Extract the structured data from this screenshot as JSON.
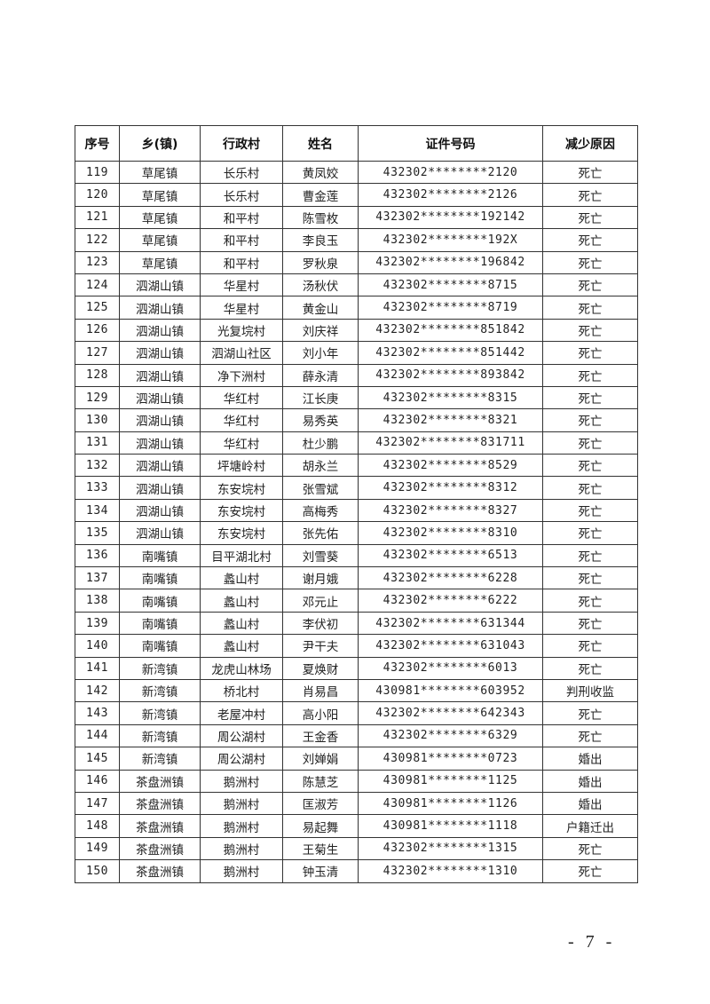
{
  "table": {
    "headers": [
      "序号",
      "乡(镇)",
      "行政村",
      "姓名",
      "证件号码",
      "减少原因"
    ],
    "rows": [
      [
        "119",
        "草尾镇",
        "长乐村",
        "黄凤姣",
        "432302********2120",
        "死亡"
      ],
      [
        "120",
        "草尾镇",
        "长乐村",
        "曹金莲",
        "432302********2126",
        "死亡"
      ],
      [
        "121",
        "草尾镇",
        "和平村",
        "陈雪枚",
        "432302********192142",
        "死亡"
      ],
      [
        "122",
        "草尾镇",
        "和平村",
        "李良玉",
        "432302********192X",
        "死亡"
      ],
      [
        "123",
        "草尾镇",
        "和平村",
        "罗秋泉",
        "432302********196842",
        "死亡"
      ],
      [
        "124",
        "泗湖山镇",
        "华星村",
        "汤秋伏",
        "432302********8715",
        "死亡"
      ],
      [
        "125",
        "泗湖山镇",
        "华星村",
        "黄金山",
        "432302********8719",
        "死亡"
      ],
      [
        "126",
        "泗湖山镇",
        "光复垸村",
        "刘庆祥",
        "432302********851842",
        "死亡"
      ],
      [
        "127",
        "泗湖山镇",
        "泗湖山社区",
        "刘小年",
        "432302********851442",
        "死亡"
      ],
      [
        "128",
        "泗湖山镇",
        "净下洲村",
        "薛永清",
        "432302********893842",
        "死亡"
      ],
      [
        "129",
        "泗湖山镇",
        "华红村",
        "江长庚",
        "432302********8315",
        "死亡"
      ],
      [
        "130",
        "泗湖山镇",
        "华红村",
        "易秀英",
        "432302********8321",
        "死亡"
      ],
      [
        "131",
        "泗湖山镇",
        "华红村",
        "杜少鹏",
        "432302********831711",
        "死亡"
      ],
      [
        "132",
        "泗湖山镇",
        "坪塘岭村",
        "胡永兰",
        "432302********8529",
        "死亡"
      ],
      [
        "133",
        "泗湖山镇",
        "东安垸村",
        "张雪斌",
        "432302********8312",
        "死亡"
      ],
      [
        "134",
        "泗湖山镇",
        "东安垸村",
        "高梅秀",
        "432302********8327",
        "死亡"
      ],
      [
        "135",
        "泗湖山镇",
        "东安垸村",
        "张先佑",
        "432302********8310",
        "死亡"
      ],
      [
        "136",
        "南嘴镇",
        "目平湖北村",
        "刘雪葵",
        "432302********6513",
        "死亡"
      ],
      [
        "137",
        "南嘴镇",
        "蠡山村",
        "谢月娥",
        "432302********6228",
        "死亡"
      ],
      [
        "138",
        "南嘴镇",
        "蠡山村",
        "邓元止",
        "432302********6222",
        "死亡"
      ],
      [
        "139",
        "南嘴镇",
        "蠡山村",
        "李伏初",
        "432302********631344",
        "死亡"
      ],
      [
        "140",
        "南嘴镇",
        "蠡山村",
        "尹干夫",
        "432302********631043",
        "死亡"
      ],
      [
        "141",
        "新湾镇",
        "龙虎山林场",
        "夏焕财",
        "432302********6013",
        "死亡"
      ],
      [
        "142",
        "新湾镇",
        "桥北村",
        "肖易昌",
        "430981********603952",
        "判刑收监"
      ],
      [
        "143",
        "新湾镇",
        "老屋冲村",
        "高小阳",
        "432302********642343",
        "死亡"
      ],
      [
        "144",
        "新湾镇",
        "周公湖村",
        "王金香",
        "432302********6329",
        "死亡"
      ],
      [
        "145",
        "新湾镇",
        "周公湖村",
        "刘婵娟",
        "430981********0723",
        "婚出"
      ],
      [
        "146",
        "茶盘洲镇",
        "鹅洲村",
        "陈慧芝",
        "430981********1125",
        "婚出"
      ],
      [
        "147",
        "茶盘洲镇",
        "鹅洲村",
        "匡淑芳",
        "430981********1126",
        "婚出"
      ],
      [
        "148",
        "茶盘洲镇",
        "鹅洲村",
        "易起舞",
        "430981********1118",
        "户籍迁出"
      ],
      [
        "149",
        "茶盘洲镇",
        "鹅洲村",
        "王菊生",
        "432302********1315",
        "死亡"
      ],
      [
        "150",
        "茶盘洲镇",
        "鹅洲村",
        "钟玉清",
        "432302********1310",
        "死亡"
      ]
    ]
  },
  "footer": {
    "page_number": "- 7 -"
  }
}
